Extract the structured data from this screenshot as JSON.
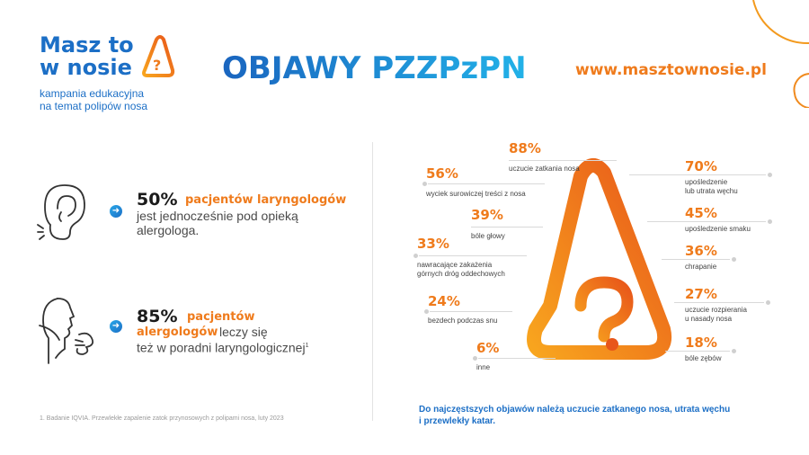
{
  "logo": {
    "line1": "Masz to",
    "line2": "w nosie",
    "sub1": "kampania edukacyjna",
    "sub2": "na temat polipów nosa"
  },
  "header": {
    "title": "OBJAWY PZZPzPN",
    "url": "www.masztownosie.pl"
  },
  "stats": [
    {
      "pct": "50%",
      "highlight": "pacjentów laryngologów",
      "line1": "jest jednocześnie pod opieką",
      "line2": "alergologa."
    },
    {
      "pct": "85%",
      "highlight1": "pacjentów",
      "highlight2": "alergologów",
      "rest": "leczy się",
      "line2": "też w poradni laryngologicznej",
      "sup": "1"
    }
  ],
  "footnote": "1. Badanie IQVIA. Przewlekłe zapalenie zatok przynosowych z polipami nosa, luty 2023",
  "symptoms": [
    {
      "pct": "88%",
      "label": "uczucie zatkania nosa"
    },
    {
      "pct": "56%",
      "label": "wyciek surowiczej treści z nosa"
    },
    {
      "pct": "39%",
      "label": "bóle głowy"
    },
    {
      "pct": "33%",
      "label1": "nawracające zakażenia",
      "label2": "górnych dróg oddechowych"
    },
    {
      "pct": "24%",
      "label": "bezdech podczas snu"
    },
    {
      "pct": "6%",
      "label": "inne"
    },
    {
      "pct": "70%",
      "label1": "upośledzenie",
      "label2": "lub utrata węchu"
    },
    {
      "pct": "45%",
      "label": "upośledzenie smaku"
    },
    {
      "pct": "36%",
      "label": "chrapanie"
    },
    {
      "pct": "27%",
      "label1": "uczucie rozpierania",
      "label2": "u nasady nosa"
    },
    {
      "pct": "18%",
      "label": "bóle zębów"
    }
  ],
  "summary": {
    "line1": "Do najczęstszych objawów należą uczucie zatkanego nosa, utrata węchu",
    "line2": "i przewlekły katar."
  },
  "colors": {
    "brand_blue": "#1c6fc6",
    "accent_orange": "#ef7b1c",
    "gradient_light": "#f8a51e",
    "gradient_dark": "#e8561a"
  }
}
